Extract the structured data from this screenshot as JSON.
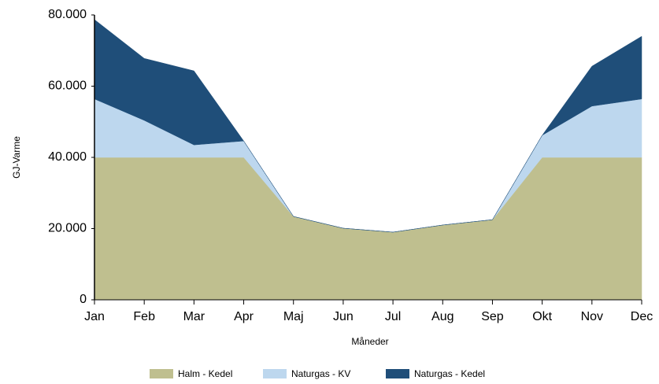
{
  "chart_data": {
    "type": "stacked_area",
    "x_label": "Måneder",
    "y_label": "GJ-Varme",
    "categories": [
      "Jan",
      "Feb",
      "Mar",
      "Apr",
      "Maj",
      "Jun",
      "Jul",
      "Aug",
      "Sep",
      "Okt",
      "Nov",
      "Dec"
    ],
    "series": [
      {
        "name": "Halm - Kedel",
        "color": "#bfbf8f",
        "values": [
          40000,
          40000,
          40000,
          40000,
          23400,
          20100,
          19000,
          21000,
          22500,
          40000,
          40000,
          40000
        ]
      },
      {
        "name": "Naturgas - KV",
        "color": "#bdd7ee",
        "values": [
          16400,
          10400,
          3500,
          4600,
          0,
          0,
          0,
          0,
          0,
          6200,
          14400,
          16400
        ]
      },
      {
        "name": "Naturgas - Kedel",
        "color": "#1f4e79",
        "values": [
          22300,
          17400,
          20800,
          0,
          0,
          0,
          0,
          0,
          0,
          0,
          11200,
          17600
        ]
      }
    ],
    "ylim": [
      0,
      80000
    ],
    "yticks": [
      0,
      {
        "value": 20000,
        "label": "20.000"
      },
      {
        "value": 40000,
        "label": "40.000"
      },
      {
        "value": 60000,
        "label": "60.000"
      },
      {
        "value": 80000,
        "label": "80.000"
      }
    ],
    "legend": "bottom"
  }
}
